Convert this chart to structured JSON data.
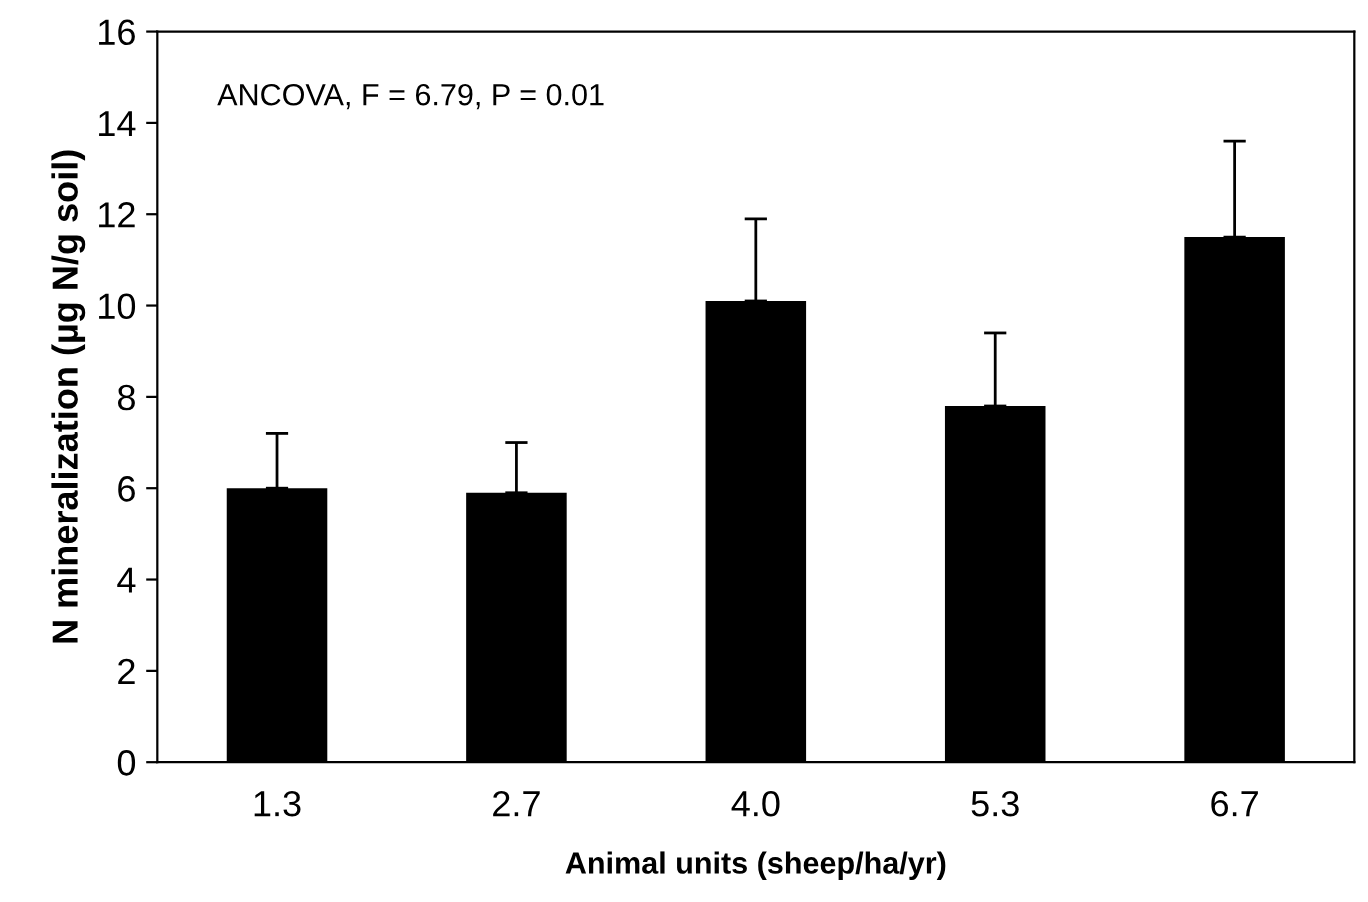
{
  "chart_data": {
    "type": "bar",
    "xlabel": "Animal units (sheep/ha/yr)",
    "ylabel": "N mineralization (µg N/g soil)",
    "categories": [
      "1.3",
      "2.7",
      "4.0",
      "5.3",
      "6.7"
    ],
    "values": [
      6.0,
      5.9,
      10.1,
      7.8,
      11.5
    ],
    "errors": [
      [
        6.0,
        7.2
      ],
      [
        5.9,
        7.0
      ],
      [
        10.1,
        11.9
      ],
      [
        7.8,
        9.4
      ],
      [
        11.5,
        13.6
      ]
    ],
    "color": "#000000",
    "ylim": [
      0,
      16
    ],
    "yticks": [
      0,
      2,
      4,
      6,
      8,
      10,
      12,
      14,
      16
    ],
    "annotations": [
      "ANCOVA, F = 6.79, P = 0.01"
    ],
    "grid": false,
    "legend": false
  }
}
